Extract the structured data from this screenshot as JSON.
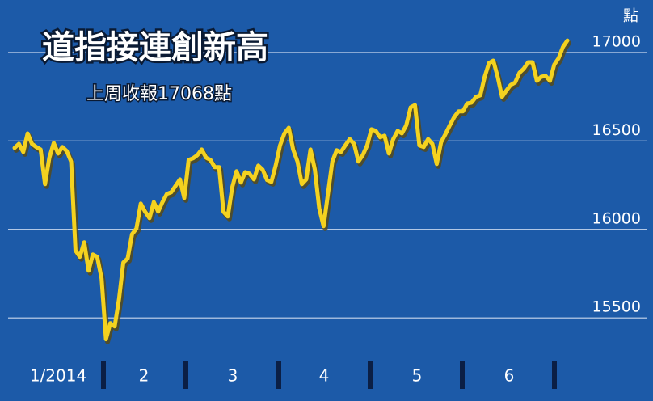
{
  "chart_data": {
    "type": "line",
    "title": "道指接連創新高",
    "subtitle": "上周收報17068點",
    "y_unit": "點",
    "x_labels": [
      "1/2014",
      "2",
      "3",
      "4",
      "5",
      "6"
    ],
    "series": [
      {
        "color": "#f4d21f",
        "values": [
          16461,
          16484,
          16438,
          16543,
          16484,
          16466,
          16452,
          16256,
          16406,
          16489,
          16429,
          16466,
          16443,
          16384,
          15881,
          15845,
          15927,
          15767,
          15858,
          15845,
          15722,
          15379,
          15470,
          15452,
          15607,
          15813,
          15836,
          15973,
          16005,
          16146,
          16100,
          16064,
          16155,
          16100,
          16155,
          16201,
          16210,
          16247,
          16283,
          16178,
          16393,
          16402,
          16420,
          16452,
          16406,
          16393,
          16352,
          16352,
          16100,
          16073,
          16237,
          16329,
          16265,
          16324,
          16315,
          16283,
          16361,
          16338,
          16279,
          16269,
          16361,
          16475,
          16543,
          16575,
          16452,
          16384,
          16256,
          16283,
          16452,
          16338,
          16119,
          16018,
          16201,
          16384,
          16448,
          16438,
          16475,
          16511,
          16484,
          16384,
          16420,
          16475,
          16566,
          16557,
          16521,
          16530,
          16429,
          16511,
          16557,
          16543,
          16589,
          16690,
          16703,
          16475,
          16466,
          16511,
          16484,
          16370,
          16493,
          16539,
          16589,
          16635,
          16667,
          16667,
          16712,
          16717,
          16749,
          16758,
          16863,
          16941,
          16954,
          16863,
          16749,
          16785,
          16817,
          16831,
          16886,
          16909,
          16945,
          16945,
          16840,
          16863,
          16868,
          16840,
          16932,
          16968,
          17032,
          17068
        ]
      }
    ],
    "ylim": [
      15030,
      17297
    ],
    "yticks": [
      15500,
      16000,
      16500,
      17000
    ],
    "grid": true
  }
}
